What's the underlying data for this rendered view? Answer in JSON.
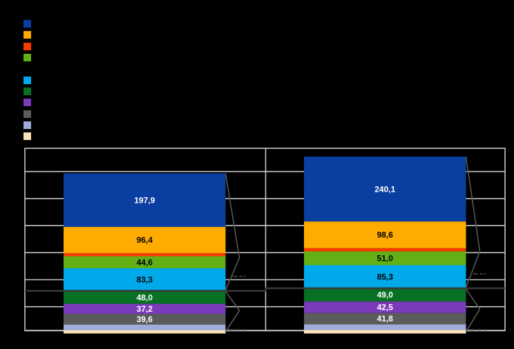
{
  "canvas": {
    "background": "#000000"
  },
  "legend": {
    "items": [
      {
        "name": "series-1",
        "color": "#0B3EA1",
        "label": "",
        "group": 1
      },
      {
        "name": "series-2",
        "color": "#FFAB00",
        "label": "",
        "group": 1
      },
      {
        "name": "series-3",
        "color": "#F63A00",
        "label": "",
        "group": 1
      },
      {
        "name": "series-4",
        "color": "#62B016",
        "label": "",
        "group": 1
      },
      {
        "name": "series-5",
        "color": "#00A9E9",
        "label": "",
        "group": 2
      },
      {
        "name": "series-6",
        "color": "#077023",
        "label": "",
        "group": 2
      },
      {
        "name": "series-7",
        "color": "#7B3ABA",
        "label": "",
        "group": 2
      },
      {
        "name": "series-8",
        "color": "#5B5B5B",
        "label": "",
        "group": 2
      },
      {
        "name": "series-9",
        "color": "#9FABD9",
        "label": "",
        "group": 2
      },
      {
        "name": "series-10",
        "color": "#F9E3B6",
        "label": "",
        "group": 2
      }
    ]
  },
  "chart_data": {
    "type": "bar",
    "stacked": true,
    "orientation": "vertical",
    "title": "",
    "xlabel": "",
    "ylabel": "",
    "categories": [
      "",
      ""
    ],
    "series": [
      {
        "name": "series-1",
        "color": "#0B3EA1",
        "label_color": "#FFFFFF",
        "values": [
          197.9,
          240.1
        ],
        "labels": [
          "197,9",
          "240,1"
        ]
      },
      {
        "name": "series-2",
        "color": "#FFAB00",
        "label_color": "#000000",
        "values": [
          96.4,
          98.6
        ],
        "labels": [
          "96,4",
          "98,6"
        ]
      },
      {
        "name": "series-3",
        "color": "#F63A00",
        "label_color": "#000000",
        "values": [
          12,
          12
        ],
        "labels": [
          "",
          ""
        ],
        "estimated": true
      },
      {
        "name": "series-4",
        "color": "#62B016",
        "label_color": "#000000",
        "values": [
          44.6,
          51.0
        ],
        "labels": [
          "44,6",
          "51,0"
        ]
      },
      {
        "name": "series-5",
        "color": "#00A9E9",
        "label_color": "#000000",
        "values": [
          83.3,
          85.3
        ],
        "labels": [
          "83,3",
          "85,3"
        ]
      },
      {
        "name": "series-6",
        "color": "#077023",
        "label_color": "#FFFFFF",
        "values": [
          48.0,
          49.0
        ],
        "labels": [
          "48,0",
          "49,0"
        ]
      },
      {
        "name": "series-7",
        "color": "#7B3ABA",
        "label_color": "#FFFFFF",
        "values": [
          37.2,
          42.5
        ],
        "labels": [
          "37,2",
          "42,5"
        ]
      },
      {
        "name": "series-8",
        "color": "#5B5B5B",
        "label_color": "#FFFFFF",
        "values": [
          39.6,
          41.8
        ],
        "labels": [
          "39,6",
          "41,8"
        ]
      },
      {
        "name": "series-9",
        "color": "#9FABD9",
        "label_color": "#000000",
        "values": [
          21,
          21
        ],
        "labels": [
          "",
          ""
        ],
        "estimated": true
      },
      {
        "name": "series-10",
        "color": "#F9E3B6",
        "label_color": "#000000",
        "values": [
          12,
          13
        ],
        "labels": [
          "",
          ""
        ],
        "estimated": true
      }
    ],
    "group_boundary_after_series_index": 3,
    "legend_position": "top-left",
    "grid": true,
    "gridline_color": "#C8C8C8",
    "plot_border_color": "#C8C8C8",
    "group_divider_line_color": "#383838",
    "brace_color": "#545454",
    "faint_annotation_color": "#3E3E3E"
  }
}
